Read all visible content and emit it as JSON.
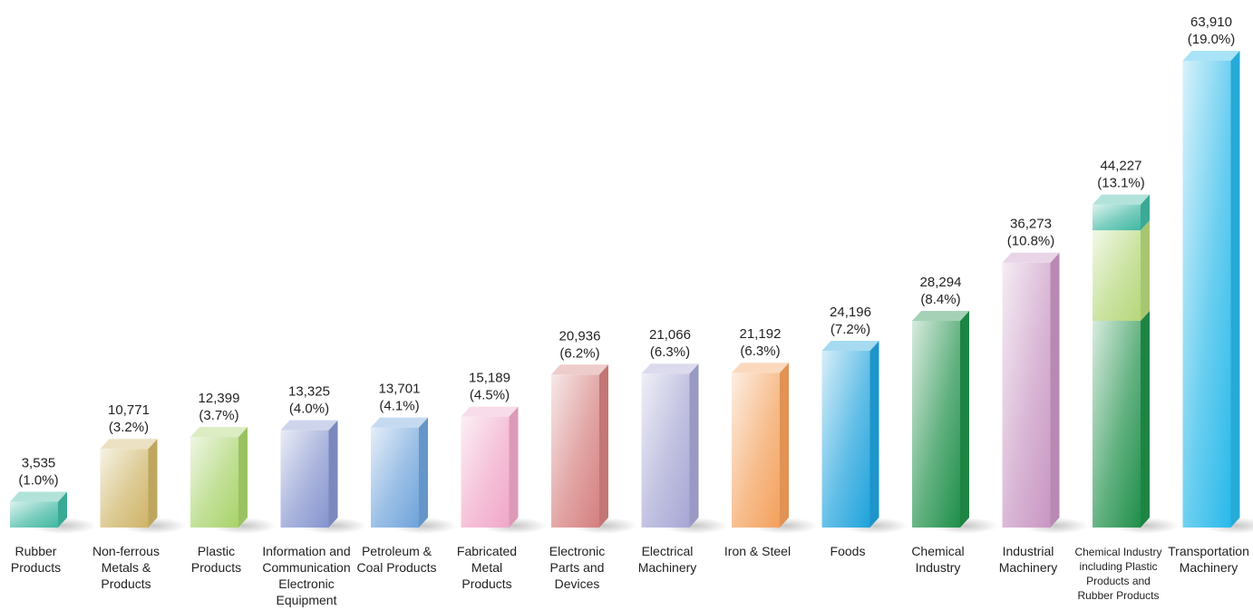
{
  "chart_data": {
    "type": "bar",
    "title": "",
    "xlabel": "",
    "ylabel": "",
    "ylim": [
      0,
      63910
    ],
    "categories": [
      [
        "Rubber",
        "Products"
      ],
      [
        "Non-ferrous",
        "Metals &",
        "Products"
      ],
      [
        "Plastic",
        "Products"
      ],
      [
        "Information and",
        "Communication",
        "Electronic",
        "Equipment"
      ],
      [
        "Petroleum &",
        "Coal Products"
      ],
      [
        "Fabricated",
        "Metal",
        "Products"
      ],
      [
        "Electronic",
        "Parts and",
        "Devices"
      ],
      [
        "Electrical",
        "Machinery"
      ],
      [
        "Iron & Steel"
      ],
      [
        "Foods"
      ],
      [
        "Chemical",
        "Industry"
      ],
      [
        "Industrial",
        "Machinery"
      ],
      [
        "Chemical Industry",
        "including Plastic",
        "Products and",
        "Rubber Products"
      ],
      [
        "Transportation",
        "Machinery"
      ]
    ],
    "values": [
      3535,
      10771,
      12399,
      13325,
      13701,
      15189,
      20936,
      21066,
      21192,
      24196,
      28294,
      36273,
      44227,
      63910
    ],
    "value_labels": [
      "3,535",
      "10,771",
      "12,399",
      "13,325",
      "13,701",
      "15,189",
      "20,936",
      "21,066",
      "21,192",
      "24,196",
      "28,294",
      "36,273",
      "44,227",
      "63,910"
    ],
    "percent_labels": [
      "(1.0%)",
      "(3.2%)",
      "(3.7%)",
      "(4.0%)",
      "(4.1%)",
      "(4.5%)",
      "(6.2%)",
      "(6.3%)",
      "(6.3%)",
      "(7.2%)",
      "(8.4%)",
      "(10.8%)",
      "(13.1%)",
      "(19.0%)"
    ],
    "stacked_bar": {
      "category_index": 12,
      "segments": [
        {
          "component": "Chemical Industry",
          "value": 28294,
          "color": "#1f8f4a"
        },
        {
          "component": "Plastic Products",
          "value": 12399,
          "color": "#b5d77a"
        },
        {
          "component": "Rubber Products",
          "value": 3535,
          "color": "#3fb8a2"
        }
      ]
    },
    "colors": [
      "#3fb8a2",
      "#cfb467",
      "#a8d36a",
      "#8594cf",
      "#6fa3db",
      "#f0a7c8",
      "#d57f7f",
      "#a7a6d4",
      "#f4a05c",
      "#1fa2dc",
      "#1f8f4a",
      "#c896c3",
      "#1f8f4a",
      "#29b9ea"
    ],
    "grid": false,
    "legend": "none"
  }
}
